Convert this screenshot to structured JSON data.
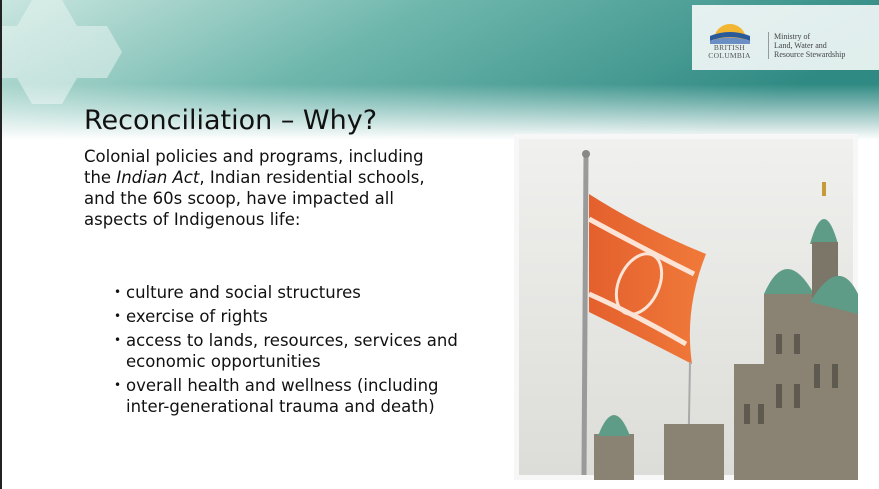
{
  "header": {
    "logo_text": "BRITISH COLUMBIA",
    "ministry": [
      "Ministry of",
      "Land, Water and",
      "Resource Stewardship"
    ]
  },
  "title": "Reconciliation – Why?",
  "body": {
    "parts": [
      "Colonial policies and programs, including the ",
      "Indian Act",
      ", Indian residential schools, and the 60s scoop, have impacted all aspects of Indigenous life:"
    ]
  },
  "bullets": [
    "culture and social structures",
    "exercise of rights",
    "access to lands, resources, services and economic opportunities",
    "overall health and wellness (including inter-generational trauma and death)"
  ]
}
